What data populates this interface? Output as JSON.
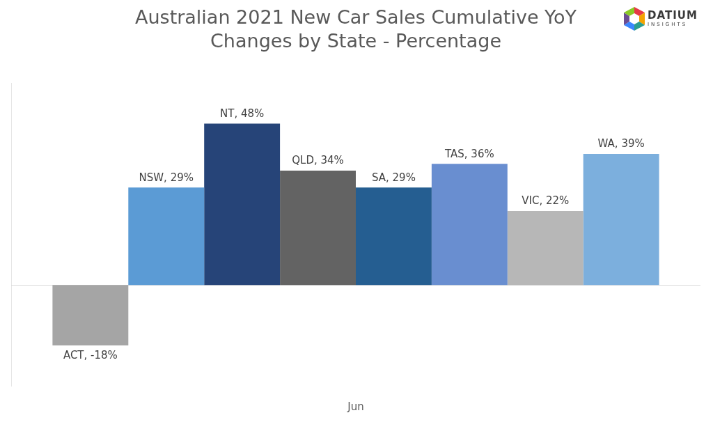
{
  "chart_data": {
    "type": "bar",
    "title": "Australian 2021 New Car Sales Cumulative YoY Changes by State - Percentage",
    "logo": [
      "DATIUM",
      "INSIGHTS"
    ],
    "categories": [
      "Jun"
    ],
    "series": [
      {
        "name": "ACT",
        "color": "#a5a5a5",
        "values": [
          -18
        ],
        "value_labels": [
          "ACT, -18%"
        ]
      },
      {
        "name": "NSW",
        "color": "#5b9bd5",
        "values": [
          29
        ],
        "value_labels": [
          "NSW, 29%"
        ]
      },
      {
        "name": "NT",
        "color": "#264478",
        "values": [
          48
        ],
        "value_labels": [
          "NT, 48%"
        ]
      },
      {
        "name": "QLD",
        "color": "#636363",
        "values": [
          34
        ],
        "value_labels": [
          "QLD, 34%"
        ]
      },
      {
        "name": "SA",
        "color": "#255e91",
        "values": [
          29
        ],
        "value_labels": [
          "SA, 29%"
        ]
      },
      {
        "name": "TAS",
        "color": "#698ed0",
        "values": [
          36
        ],
        "value_labels": [
          "TAS, 36%"
        ]
      },
      {
        "name": "VIC",
        "color": "#b7b7b7",
        "values": [
          22
        ],
        "value_labels": [
          "VIC, 22%"
        ]
      },
      {
        "name": "WA",
        "color": "#7cafdd",
        "values": [
          39
        ],
        "value_labels": [
          "WA, 39%"
        ]
      }
    ],
    "ylim": [
      -30,
      60
    ],
    "grid": false,
    "legend": "none",
    "data_labels": true,
    "tick_labels": "x"
  }
}
